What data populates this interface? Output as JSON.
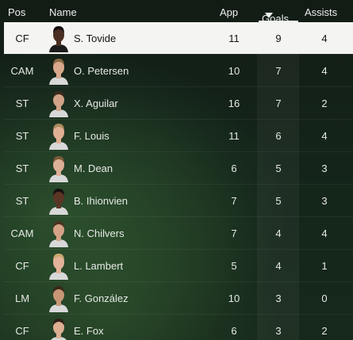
{
  "header": {
    "pos": "Pos",
    "name": "Name",
    "app": "App",
    "goals": "Goals",
    "assists": "Assists"
  },
  "sort": {
    "column": "goals",
    "direction": "desc",
    "arrow_icon": "sort-desc-icon"
  },
  "colors": {
    "selected_row_bg": "#f4f4f2",
    "background": "#14241a",
    "text": "#e6e9e6"
  },
  "rows": [
    {
      "pos": "CF",
      "name": "S. Tovide",
      "app": "11",
      "goals": "9",
      "assists": "4",
      "selected": true,
      "skin": "#4a2e22",
      "hair": "#141010",
      "shirt": "#1b1b1b"
    },
    {
      "pos": "CAM",
      "name": "O. Petersen",
      "app": "10",
      "goals": "7",
      "assists": "4",
      "selected": false,
      "skin": "#d9a98c",
      "hair": "#8a6a44",
      "shirt": "#d8d8d8"
    },
    {
      "pos": "ST",
      "name": "X. Aguilar",
      "app": "16",
      "goals": "7",
      "assists": "2",
      "selected": false,
      "skin": "#d2a386",
      "hair": "#3a2a1e",
      "shirt": "#d8d8d8"
    },
    {
      "pos": "ST",
      "name": "F. Louis",
      "app": "11",
      "goals": "6",
      "assists": "4",
      "selected": false,
      "skin": "#e0b094",
      "hair": "#a98a5e",
      "shirt": "#d8d8d8"
    },
    {
      "pos": "ST",
      "name": "M. Dean",
      "app": "6",
      "goals": "5",
      "assists": "3",
      "selected": false,
      "skin": "#dcb096",
      "hair": "#7a5a38",
      "shirt": "#d8d8d8"
    },
    {
      "pos": "ST",
      "name": "B. Ihionvien",
      "app": "7",
      "goals": "5",
      "assists": "3",
      "selected": false,
      "skin": "#5a3626",
      "hair": "#161010",
      "shirt": "#d8d8d8"
    },
    {
      "pos": "CAM",
      "name": "N. Chilvers",
      "app": "7",
      "goals": "4",
      "assists": "4",
      "selected": false,
      "skin": "#d4a286",
      "hair": "#4a3422",
      "shirt": "#d8d8d8"
    },
    {
      "pos": "CF",
      "name": "L. Lambert",
      "app": "5",
      "goals": "4",
      "assists": "1",
      "selected": false,
      "skin": "#e2b39a",
      "hair": "#c9a870",
      "shirt": "#d8d8d8"
    },
    {
      "pos": "LM",
      "name": "F. González",
      "app": "10",
      "goals": "3",
      "assists": "0",
      "selected": false,
      "skin": "#c89676",
      "hair": "#3a2818",
      "shirt": "#d8d8d8"
    },
    {
      "pos": "CF",
      "name": "E. Fox",
      "app": "6",
      "goals": "3",
      "assists": "2",
      "selected": false,
      "skin": "#dcae92",
      "hair": "#2e2018",
      "shirt": "#d8d8d8"
    }
  ]
}
